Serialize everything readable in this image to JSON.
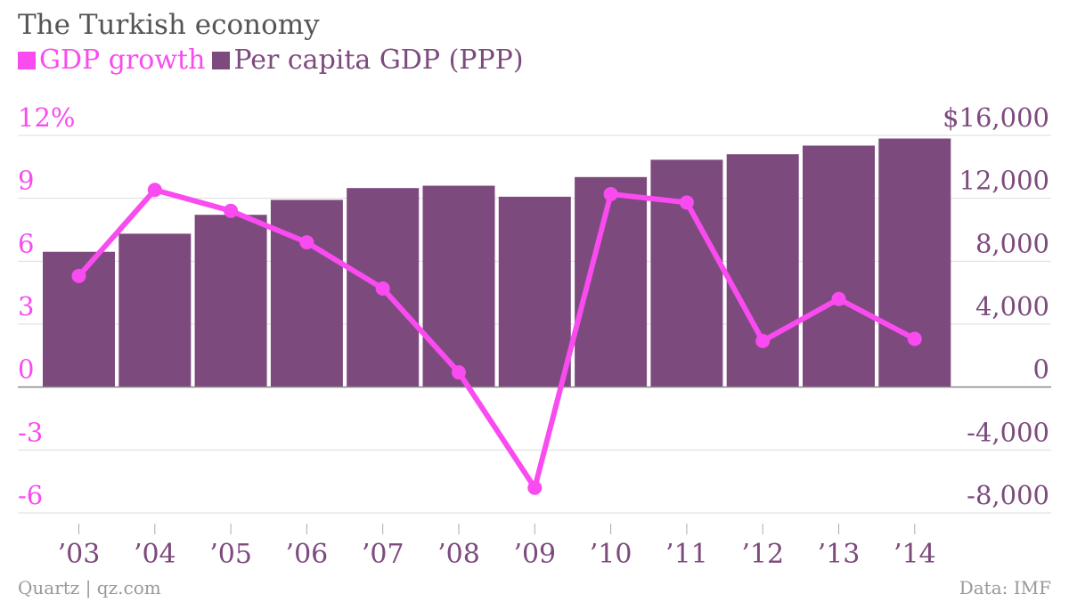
{
  "colors": {
    "growth": "#f94bef",
    "gdp": "#7d4a7e",
    "title": "#555555",
    "footer": "#999999",
    "grid": "#dddddd",
    "zero": "#888888"
  },
  "chart_data": {
    "type": "bar+line",
    "title": "The Turkish economy",
    "categories": [
      "’03",
      "’04",
      "’05",
      "’06",
      "’07",
      "’08",
      "’09",
      "’10",
      "’11",
      "’12",
      "’13",
      "’14"
    ],
    "series": [
      {
        "name": "GDP growth",
        "type": "line",
        "axis": "left",
        "values": [
          5.3,
          9.4,
          8.4,
          6.9,
          4.7,
          0.7,
          -4.8,
          9.2,
          8.8,
          2.2,
          4.2,
          2.3
        ]
      },
      {
        "name": "Per capita GDP (PPP)",
        "type": "bar",
        "axis": "right",
        "values": [
          8600,
          9750,
          10950,
          11900,
          12650,
          12800,
          12100,
          13350,
          14450,
          14800,
          15350,
          15800
        ]
      }
    ],
    "y_left": {
      "ticks": [
        -6,
        -3,
        0,
        3,
        6,
        9,
        12
      ],
      "tick_labels": [
        "-6",
        "-3",
        "0",
        "3",
        "6",
        "9",
        "12%"
      ],
      "range": [
        -6,
        12
      ]
    },
    "y_right": {
      "ticks": [
        -8000,
        -4000,
        0,
        4000,
        8000,
        12000,
        16000
      ],
      "tick_labels": [
        "-8,000",
        "-4,000",
        "0",
        "4,000",
        "8,000",
        "12,000",
        "$16,000"
      ],
      "range": [
        -8000,
        16000
      ]
    },
    "legend_position": "top-left",
    "grid": true
  },
  "footer": {
    "source_left": "Quartz | qz.com",
    "source_right": "Data: IMF"
  }
}
